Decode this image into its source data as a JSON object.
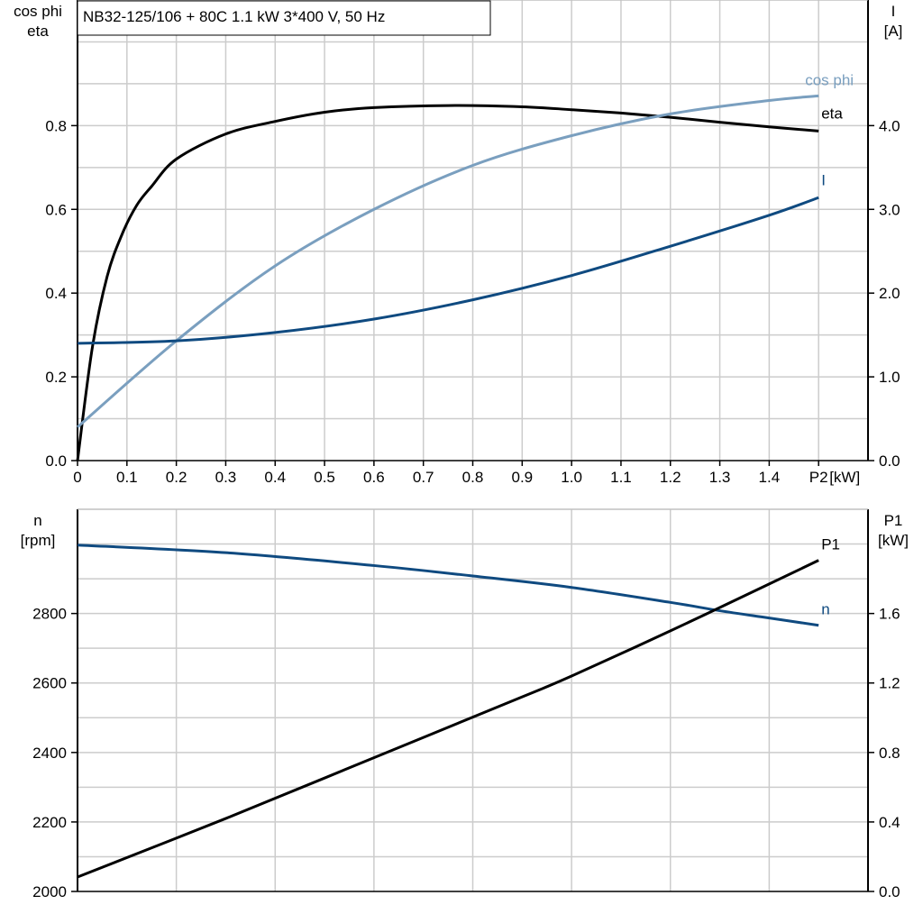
{
  "title": "NB32-125/106 + 80C   1.1 kW   3*400 V, 50 Hz",
  "colors": {
    "eta": "#000000",
    "cos_phi": "#7a9fbf",
    "I": "#0f4a80",
    "n": "#0f4a80",
    "P1": "#000000",
    "grid": "#cccccc"
  },
  "chart_data": [
    {
      "type": "line",
      "left_axis_label": [
        "cos phi",
        "eta"
      ],
      "right_axis_label": [
        "I",
        "[A]"
      ],
      "xlabel": "[kW]",
      "xlim": [
        0,
        1.6
      ],
      "ylim_left": [
        0,
        1.1
      ],
      "ylim_right": [
        0,
        5.5
      ],
      "x_ticks": [
        "0",
        "0.1",
        "0.2",
        "0.3",
        "0.4",
        "0.5",
        "0.6",
        "0.7",
        "0.8",
        "0.9",
        "1.0",
        "1.1",
        "1.2",
        "1.3",
        "1.4",
        "P2"
      ],
      "y_ticks_left": [
        "0.0",
        "0.2",
        "0.4",
        "0.6",
        "0.8"
      ],
      "y_ticks_right": [
        "0.0",
        "1.0",
        "2.0",
        "3.0",
        "4.0"
      ],
      "grid": true,
      "series": [
        {
          "name": "eta",
          "axis": "left",
          "x": [
            0,
            0.03,
            0.06,
            0.09,
            0.12,
            0.15,
            0.2,
            0.3,
            0.4,
            0.5,
            0.6,
            0.75,
            0.9,
            1.0,
            1.1,
            1.2,
            1.3,
            1.4,
            1.5
          ],
          "y": [
            0,
            0.27,
            0.44,
            0.54,
            0.61,
            0.655,
            0.72,
            0.78,
            0.81,
            0.832,
            0.843,
            0.848,
            0.845,
            0.838,
            0.83,
            0.82,
            0.808,
            0.797,
            0.787
          ]
        },
        {
          "name": "cos phi",
          "axis": "left",
          "x": [
            0,
            0.2,
            0.4,
            0.6,
            0.8,
            1.0,
            1.2,
            1.4,
            1.5
          ],
          "y": [
            0.08,
            0.286,
            0.465,
            0.6,
            0.705,
            0.776,
            0.828,
            0.86,
            0.871
          ]
        },
        {
          "name": "I",
          "axis": "right",
          "x": [
            0,
            0.2,
            0.4,
            0.6,
            0.8,
            1.0,
            1.2,
            1.4,
            1.5
          ],
          "y": [
            1.4,
            1.43,
            1.53,
            1.69,
            1.92,
            2.21,
            2.56,
            2.93,
            3.14
          ]
        }
      ]
    },
    {
      "type": "line",
      "left_axis_label": [
        "n",
        "[rpm]"
      ],
      "right_axis_label": [
        "P1",
        "[kW]"
      ],
      "xlim": [
        0,
        1.6
      ],
      "ylim_left": [
        2000,
        3100
      ],
      "ylim_right": [
        0,
        2.2
      ],
      "y_ticks_left": [
        "2000",
        "2200",
        "2400",
        "2600",
        "2800"
      ],
      "y_ticks_right": [
        "0.0",
        "0.4",
        "0.8",
        "1.2",
        "1.6"
      ],
      "grid": true,
      "series": [
        {
          "name": "n",
          "axis": "left",
          "x": [
            0,
            0.3,
            0.6,
            0.8,
            1.0,
            1.2,
            1.3,
            1.4,
            1.5
          ],
          "y": [
            2997,
            2975,
            2938,
            2908,
            2875,
            2832,
            2808,
            2787,
            2766
          ]
        },
        {
          "name": "P1",
          "axis": "right",
          "x": [
            0,
            0.3,
            0.6,
            0.9,
            1.0,
            1.2,
            1.4,
            1.5
          ],
          "y": [
            0.083,
            0.42,
            0.77,
            1.12,
            1.24,
            1.5,
            1.77,
            1.906
          ]
        }
      ]
    }
  ]
}
